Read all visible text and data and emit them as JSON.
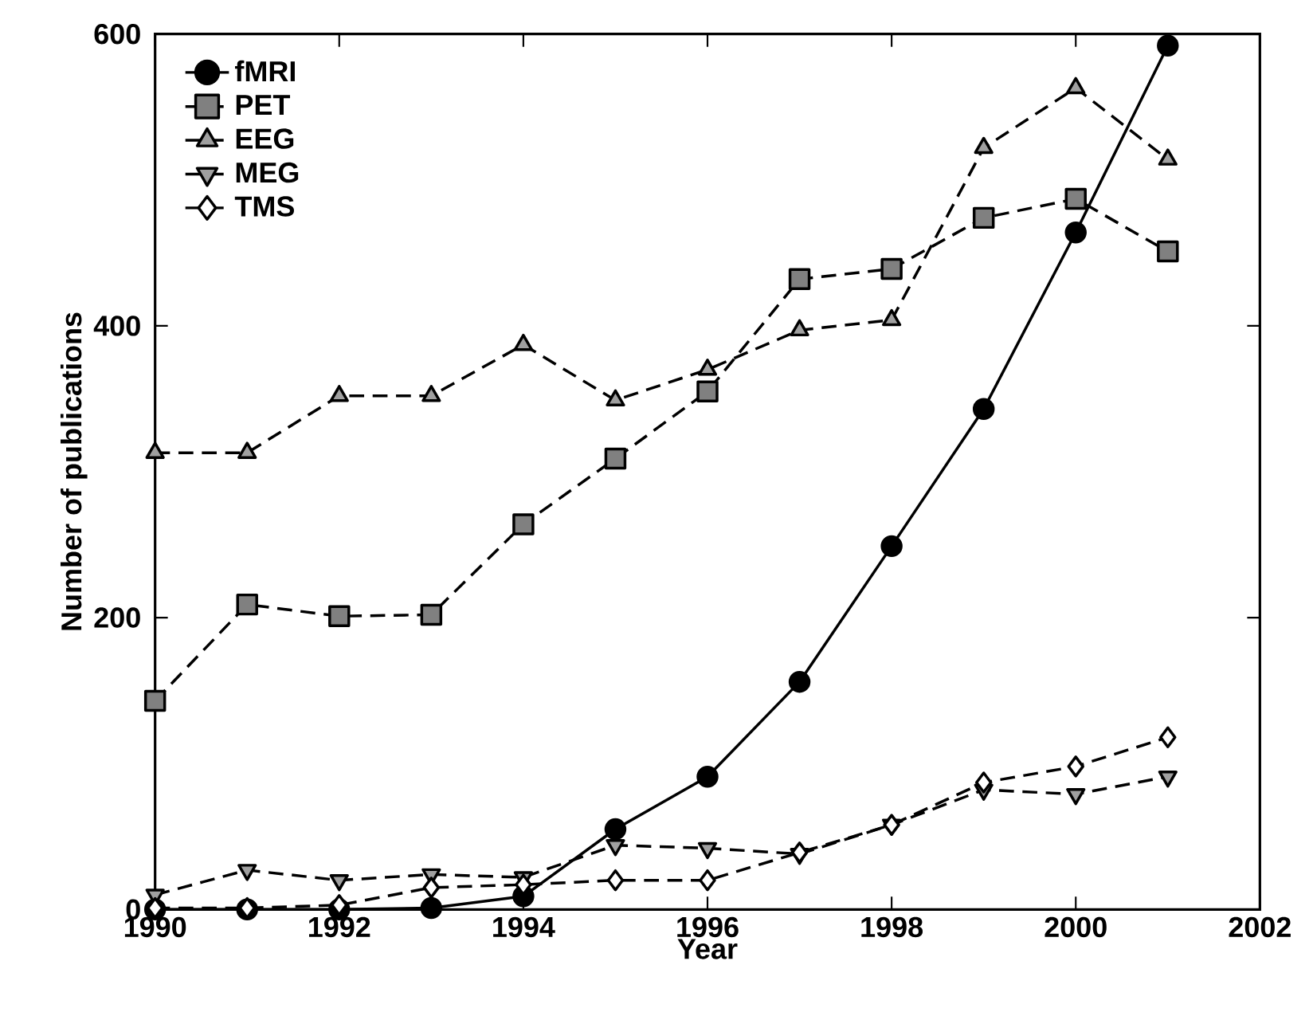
{
  "chart_data": {
    "type": "line",
    "xlabel": "Year",
    "ylabel": "Number of publications",
    "x": [
      1990,
      1991,
      1992,
      1993,
      1994,
      1995,
      1996,
      1997,
      1998,
      1999,
      2000,
      2001
    ],
    "xlim": [
      1990,
      2002
    ],
    "xticks": [
      1990,
      1992,
      1994,
      1996,
      1998,
      2000,
      2002
    ],
    "ylim": [
      0,
      600
    ],
    "yticks": [
      0,
      200,
      400,
      600
    ],
    "legend": "top left",
    "series": [
      {
        "name": "fMRI",
        "color": "#000000",
        "marker": "circle",
        "line_style": "solid",
        "values": [
          0,
          0,
          0,
          1,
          9,
          55,
          91,
          156,
          249,
          343,
          464,
          592
        ]
      },
      {
        "name": "PET",
        "color": "#808080",
        "marker": "square",
        "line_style": "dashed",
        "values": [
          143,
          209,
          201,
          202,
          264,
          309,
          355,
          432,
          439,
          474,
          487,
          451
        ]
      },
      {
        "name": "EEG",
        "color": "#a0a0a0",
        "marker": "triangle",
        "line_style": "dashed",
        "values": [
          313,
          313,
          352,
          352,
          387,
          349,
          370,
          397,
          404,
          522,
          563,
          514
        ]
      },
      {
        "name": "MEG",
        "color": "#a0a0a0",
        "marker": "triangle_down",
        "line_style": "dashed",
        "values": [
          10,
          27,
          20,
          24,
          22,
          44,
          42,
          38,
          58,
          82,
          79,
          91
        ]
      },
      {
        "name": "TMS",
        "color": "#ffffff",
        "marker": "diamond",
        "line_style": "dashed",
        "values": [
          1,
          1,
          3,
          15,
          17,
          20,
          20,
          39,
          58,
          87,
          98,
          118
        ]
      }
    ]
  }
}
